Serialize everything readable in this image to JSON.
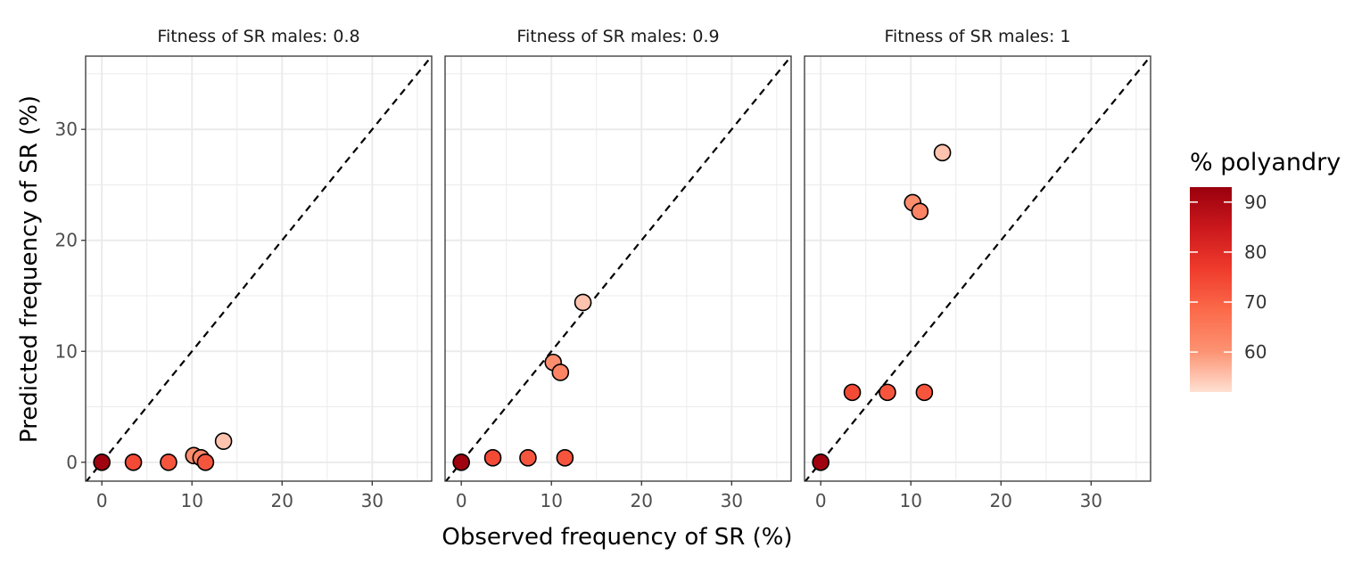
{
  "chart_data": {
    "type": "scatter",
    "xlabel": "Observed frequency of SR (%)",
    "ylabel": "Predicted frequency of SR (%)",
    "xlim": [
      -1.8,
      36.6
    ],
    "ylim": [
      -1.7,
      36.6
    ],
    "x_ticks": [
      0,
      10,
      20,
      30
    ],
    "y_ticks": [
      0,
      10,
      20,
      30
    ],
    "grid": true,
    "reference_line": "y = x (dashed)",
    "legend": {
      "title": "% polyandry",
      "type": "colorbar",
      "position": "right",
      "ticks": [
        60,
        70,
        80,
        90
      ],
      "range": [
        52,
        93
      ],
      "colors": [
        "#fee0d2",
        "#fc9272",
        "#fb6a4a",
        "#ef3b2c",
        "#cb181d",
        "#99000d"
      ]
    },
    "panels": [
      {
        "title": "Fitness of SR males: 0.8",
        "points": [
          {
            "x": 0,
            "y": 0,
            "polyandry": 92
          },
          {
            "x": 3.5,
            "y": 0,
            "polyandry": 74
          },
          {
            "x": 7.4,
            "y": 0,
            "polyandry": 72
          },
          {
            "x": 11.5,
            "y": 0,
            "polyandry": 72
          },
          {
            "x": 10.2,
            "y": 0.6,
            "polyandry": 61
          },
          {
            "x": 11.0,
            "y": 0.4,
            "polyandry": 63
          },
          {
            "x": 13.5,
            "y": 1.9,
            "polyandry": 55
          }
        ]
      },
      {
        "title": "Fitness of SR males: 0.9",
        "points": [
          {
            "x": 0,
            "y": 0,
            "polyandry": 92
          },
          {
            "x": 3.5,
            "y": 0.4,
            "polyandry": 74
          },
          {
            "x": 7.4,
            "y": 0.4,
            "polyandry": 72
          },
          {
            "x": 11.5,
            "y": 0.4,
            "polyandry": 72
          },
          {
            "x": 10.2,
            "y": 9.0,
            "polyandry": 61
          },
          {
            "x": 11.0,
            "y": 8.1,
            "polyandry": 63
          },
          {
            "x": 13.5,
            "y": 14.4,
            "polyandry": 55
          }
        ]
      },
      {
        "title": "Fitness of SR males: 1",
        "points": [
          {
            "x": 0,
            "y": 0,
            "polyandry": 92
          },
          {
            "x": 3.5,
            "y": 6.3,
            "polyandry": 74
          },
          {
            "x": 7.4,
            "y": 6.3,
            "polyandry": 72
          },
          {
            "x": 11.5,
            "y": 6.3,
            "polyandry": 72
          },
          {
            "x": 10.2,
            "y": 23.4,
            "polyandry": 61
          },
          {
            "x": 11.0,
            "y": 22.6,
            "polyandry": 63
          },
          {
            "x": 13.5,
            "y": 27.9,
            "polyandry": 55
          }
        ]
      }
    ]
  }
}
